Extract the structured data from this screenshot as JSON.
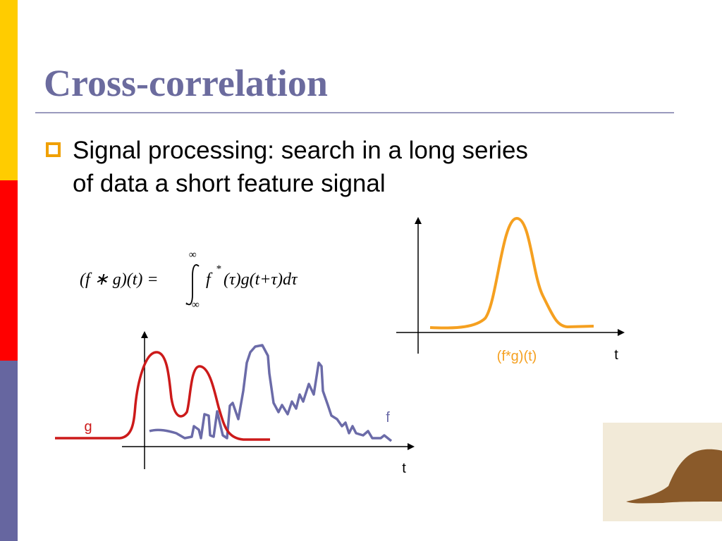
{
  "title": "Cross-correlation",
  "bullet": {
    "line1": "Signal processing: search in a long series",
    "line2": "of data a short feature signal"
  },
  "formula": {
    "lhs": "(f ∗ g)(t) =",
    "upper": "∞",
    "lower": "−∞",
    "integrand": "f",
    "star": "*",
    "rest": "(τ)g(t+τ)dτ"
  },
  "left_plot": {
    "g_label": "g",
    "f_label": "f",
    "axis_label": "t"
  },
  "right_plot": {
    "curve_label": "(f*g)(t)",
    "axis_label": "t"
  }
}
